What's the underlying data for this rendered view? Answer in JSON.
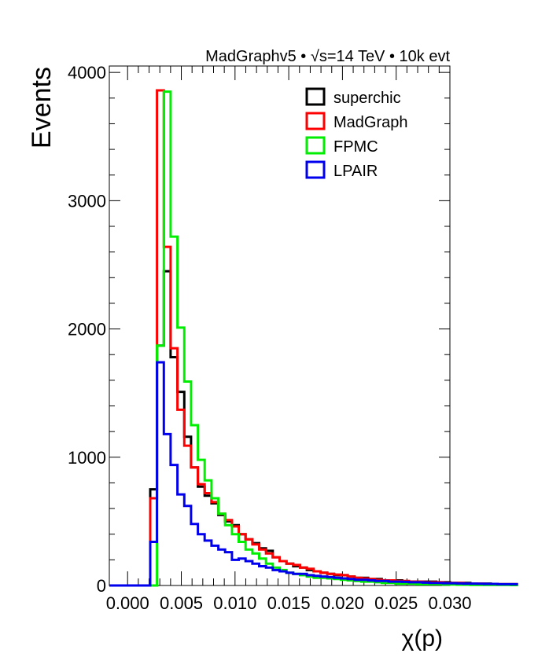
{
  "chart_data": {
    "type": "histogram",
    "header": "MadGraphv5 • √s=14 TeV • 10k evt",
    "xlabel": "χ(p)",
    "ylabel": "Events",
    "xlim": [
      -0.0017,
      0.03
    ],
    "ylim": [
      0,
      4050
    ],
    "grid": false,
    "legend_position": "top-right",
    "x_tick_labels": [
      "0.000",
      "0.005",
      "0.010",
      "0.015",
      "0.020",
      "0.025",
      "0.030"
    ],
    "x_ticks": [
      0.0,
      0.005,
      0.01,
      0.015,
      0.02,
      0.025,
      0.03
    ],
    "y_ticks": [
      0,
      1000,
      2000,
      3000,
      4000
    ],
    "bin_start": -0.0017,
    "bin_width": 0.000634,
    "series": [
      {
        "name": "superchic",
        "color": "#000000",
        "values": [
          0,
          0,
          0,
          0,
          0,
          0,
          750,
          1870,
          2450,
          1780,
          1510,
          1160,
          920,
          770,
          700,
          640,
          550,
          500,
          470,
          400,
          360,
          330,
          290,
          270,
          220,
          190,
          170,
          150,
          140,
          120,
          110,
          100,
          90,
          80,
          80,
          70,
          60,
          60,
          50,
          50,
          40,
          40,
          40,
          30,
          30,
          30,
          30,
          30,
          25,
          25,
          20,
          20,
          20,
          15,
          15,
          15,
          10,
          10,
          10,
          10
        ]
      },
      {
        "name": "MadGraph",
        "color": "#ff0000",
        "values": [
          0,
          0,
          0,
          0,
          0,
          0,
          680,
          3860,
          2640,
          1850,
          1370,
          1090,
          920,
          790,
          720,
          650,
          560,
          510,
          460,
          400,
          360,
          320,
          280,
          250,
          220,
          190,
          170,
          160,
          140,
          130,
          110,
          100,
          90,
          85,
          80,
          70,
          60,
          55,
          50,
          45,
          40,
          40,
          35,
          35,
          30,
          30,
          25,
          25,
          25,
          20,
          20,
          20,
          15,
          15,
          15,
          10,
          10,
          10,
          10,
          10
        ]
      },
      {
        "name": "FPMC",
        "color": "#00ee00",
        "values": [
          0,
          0,
          0,
          0,
          0,
          0,
          0,
          1870,
          3850,
          2720,
          2010,
          1590,
          1250,
          980,
          820,
          680,
          560,
          470,
          400,
          340,
          280,
          250,
          210,
          170,
          140,
          120,
          100,
          90,
          80,
          70,
          60,
          60,
          55,
          50,
          45,
          40,
          35,
          30,
          30,
          25,
          20,
          20,
          15,
          15,
          15,
          10,
          10,
          10,
          10,
          8,
          8,
          6,
          6,
          5,
          5,
          5,
          4,
          4,
          4,
          3
        ]
      },
      {
        "name": "LPAIR",
        "color": "#0000ee",
        "values": [
          0,
          0,
          0,
          0,
          0,
          0,
          340,
          1740,
          1180,
          940,
          710,
          620,
          480,
          400,
          350,
          310,
          280,
          260,
          200,
          210,
          190,
          170,
          150,
          140,
          120,
          110,
          100,
          90,
          90,
          80,
          75,
          70,
          65,
          60,
          55,
          50,
          45,
          45,
          40,
          35,
          35,
          30,
          30,
          28,
          25,
          25,
          22,
          20,
          20,
          18,
          18,
          16,
          15,
          15,
          14,
          12,
          12,
          10,
          10,
          10
        ]
      }
    ]
  }
}
